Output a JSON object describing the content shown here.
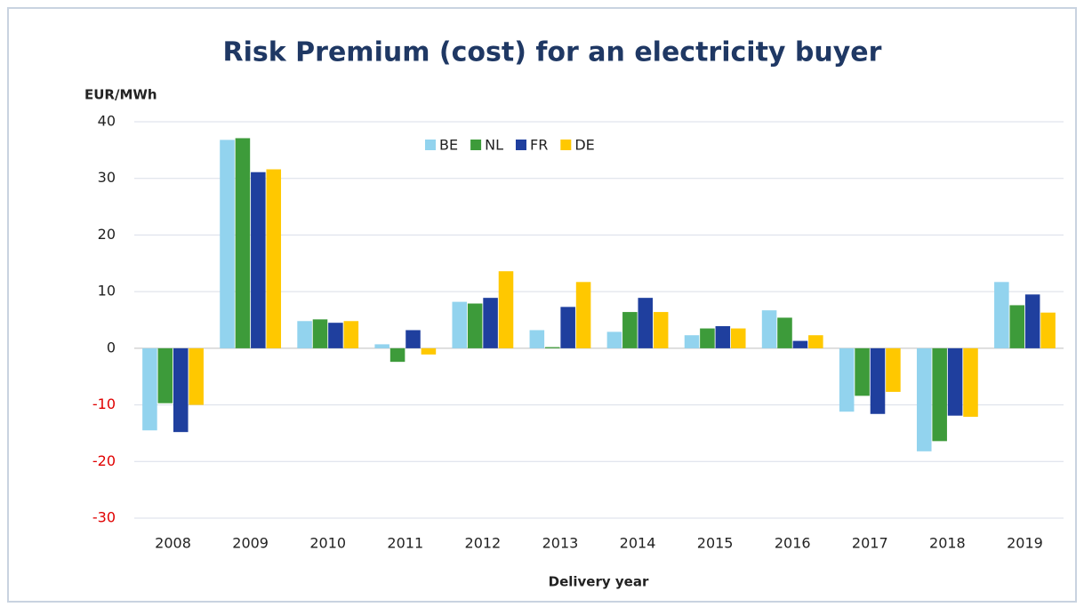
{
  "chart_data": {
    "type": "bar",
    "title": "Risk Premium (cost) for an electricity buyer",
    "y_axis_label": "EUR/MWh",
    "x_axis_label": "Delivery year",
    "categories": [
      "2008",
      "2009",
      "2010",
      "2011",
      "2012",
      "2013",
      "2014",
      "2015",
      "2016",
      "2017",
      "2018",
      "2019"
    ],
    "series": [
      {
        "name": "BE",
        "color": "#92d3ee",
        "values": [
          -14.5,
          36.8,
          4.8,
          0.7,
          8.2,
          3.2,
          2.9,
          2.3,
          6.7,
          -11.2,
          -18.2,
          11.7
        ]
      },
      {
        "name": "NL",
        "color": "#3d9b3a",
        "values": [
          -9.7,
          37.1,
          5.1,
          -2.4,
          7.9,
          0.2,
          6.4,
          3.5,
          5.4,
          -8.4,
          -16.4,
          7.6
        ]
      },
      {
        "name": "FR",
        "color": "#1f3f9e",
        "values": [
          -14.8,
          31.1,
          4.5,
          3.2,
          8.9,
          7.3,
          8.9,
          3.9,
          1.3,
          -11.6,
          -11.9,
          9.5
        ]
      },
      {
        "name": "DE",
        "color": "#ffc800",
        "values": [
          -10,
          31.6,
          4.8,
          -1.1,
          13.6,
          11.7,
          6.4,
          3.5,
          2.3,
          -7.7,
          -12.1,
          6.3
        ]
      }
    ],
    "ylim": [
      -30,
      40
    ],
    "yticks": [
      -30,
      -20,
      -10,
      0,
      10,
      20,
      30,
      40
    ],
    "grid": true,
    "legend": "top",
    "negative_tick_color": "#e00000"
  }
}
